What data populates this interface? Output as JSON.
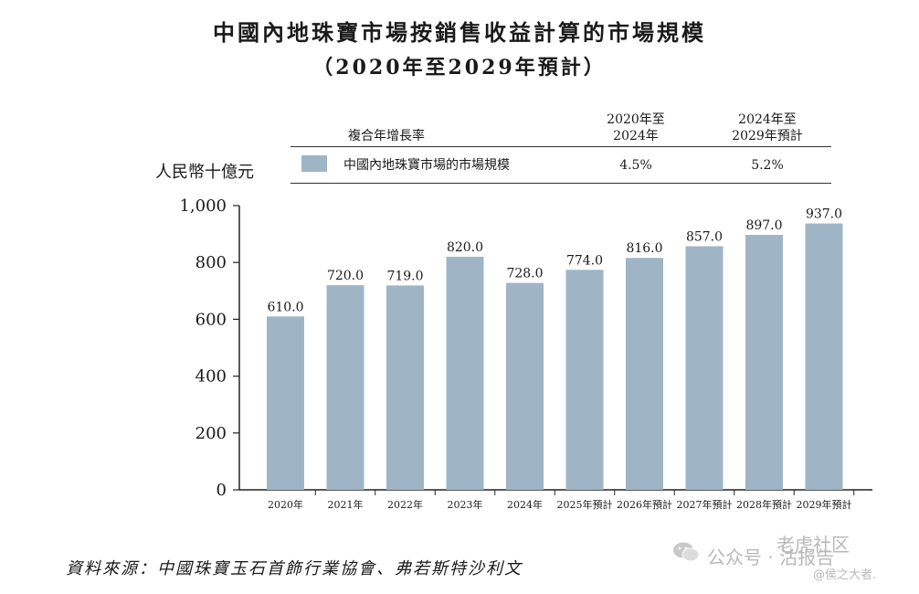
{
  "title_line1": "中國內地珠寶市場按銷售收益計算的市場規模",
  "title_line2": "（2020年至2029年預計）",
  "legend_table": {
    "header_label": "複合年增長率",
    "col1_header_line1": "2020年至",
    "col1_header_line2": "2024年",
    "col2_header_line1": "2024年至",
    "col2_header_line2": "2029年預計",
    "series_label": "中國內地珠寶市場的市場規模",
    "col1_value": "4.5%",
    "col2_value": "5.2%"
  },
  "source": "資料來源：中國珠寶玉石首飾行業協會、弗若斯特沙利文",
  "watermark": {
    "text": "公众号 · 沽报告",
    "side_text": "老虎社区",
    "sub_text": "@侯之大者."
  },
  "colors": {
    "bar": "#9fb5c5",
    "axis": "#222222"
  },
  "chart_data": {
    "type": "bar",
    "ylabel": "人民幣十億元",
    "categories": [
      "2020年",
      "2021年",
      "2022年",
      "2023年",
      "2024年",
      "2025年預計",
      "2026年預計",
      "2027年預計",
      "2028年預計",
      "2029年預計"
    ],
    "values": [
      610.0,
      720.0,
      719.0,
      820.0,
      728.0,
      774.0,
      816.0,
      857.0,
      897.0,
      937.0
    ],
    "value_labels": [
      "610.0",
      "720.0",
      "719.0",
      "820.0",
      "728.0",
      "774.0",
      "816.0",
      "857.0",
      "897.0",
      "937.0"
    ],
    "ylim": [
      0,
      1000
    ],
    "yticks": [
      0,
      200,
      400,
      600,
      800,
      1000
    ],
    "ytick_labels": [
      "0",
      "200",
      "400",
      "600",
      "800",
      "1,000"
    ],
    "grid": false,
    "legend": "top"
  }
}
